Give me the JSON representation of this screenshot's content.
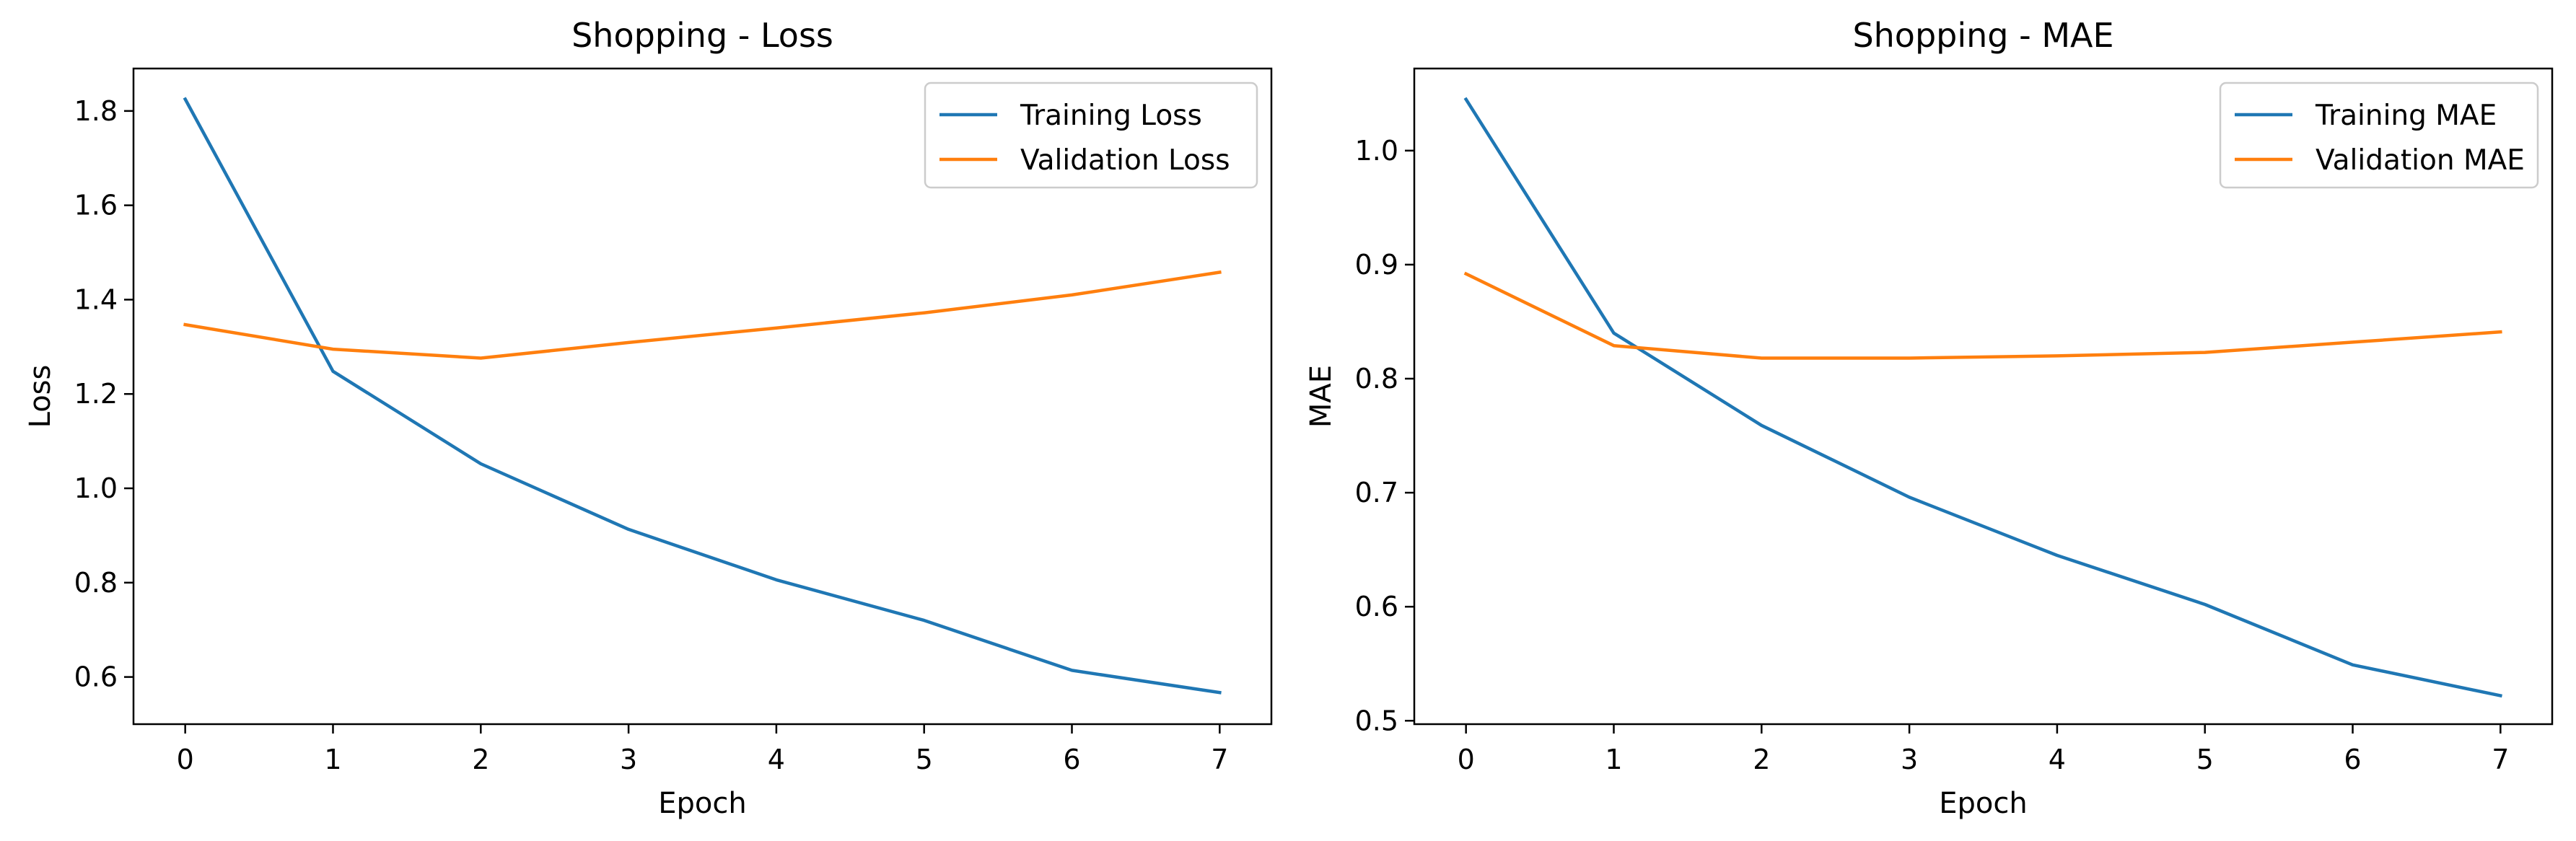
{
  "chart_data": [
    {
      "type": "line",
      "title": "Shopping - Loss",
      "xlabel": "Epoch",
      "ylabel": "Loss",
      "x": [
        0,
        1,
        2,
        3,
        4,
        5,
        6,
        7
      ],
      "xlim": [
        -0.35,
        7.35
      ],
      "ylim": [
        0.5,
        1.89
      ],
      "xticks": [
        "0",
        "1",
        "2",
        "3",
        "4",
        "5",
        "6",
        "7"
      ],
      "yticks": [
        "0.6",
        "0.8",
        "1.0",
        "1.2",
        "1.4",
        "1.6",
        "1.8"
      ],
      "grid": false,
      "legend_position": "top-right",
      "series": [
        {
          "name": "Training Loss",
          "color": "#1f77b4",
          "values": [
            1.825,
            1.248,
            1.052,
            0.913,
            0.806,
            0.72,
            0.614,
            0.567
          ]
        },
        {
          "name": "Validation Loss",
          "color": "#ff7f0e",
          "values": [
            1.347,
            1.295,
            1.276,
            1.309,
            1.34,
            1.372,
            1.41,
            1.458
          ]
        }
      ]
    },
    {
      "type": "line",
      "title": "Shopping - MAE",
      "xlabel": "Epoch",
      "ylabel": "MAE",
      "x": [
        0,
        1,
        2,
        3,
        4,
        5,
        6,
        7
      ],
      "xlim": [
        -0.35,
        7.35
      ],
      "ylim": [
        0.497,
        1.072
      ],
      "xticks": [
        "0",
        "1",
        "2",
        "3",
        "4",
        "5",
        "6",
        "7"
      ],
      "yticks": [
        "0.5",
        "0.6",
        "0.7",
        "0.8",
        "0.9",
        "1.0"
      ],
      "grid": false,
      "legend_position": "top-right",
      "series": [
        {
          "name": "Training MAE",
          "color": "#1f77b4",
          "values": [
            1.045,
            0.84,
            0.759,
            0.696,
            0.645,
            0.602,
            0.549,
            0.522
          ]
        },
        {
          "name": "Validation MAE",
          "color": "#ff7f0e",
          "values": [
            0.892,
            0.829,
            0.818,
            0.818,
            0.82,
            0.823,
            0.832,
            0.841
          ]
        }
      ]
    }
  ]
}
